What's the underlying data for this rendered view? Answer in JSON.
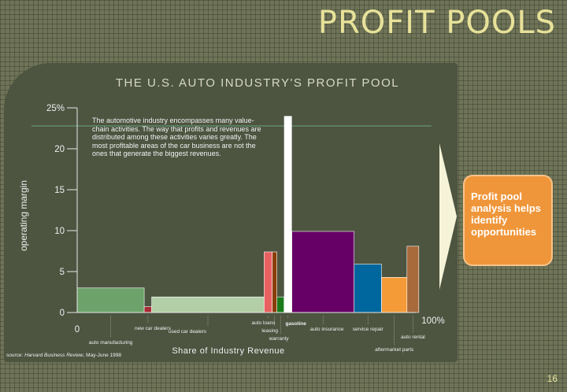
{
  "slide": {
    "title": "PROFIT POOLS",
    "callout": "Profit pool analysis helps identify opportunities",
    "page_number": "16"
  },
  "colors": {
    "background": "#6f7458",
    "panel": "#4d5440",
    "title": "#e8e29a",
    "callout": "#f0963a",
    "arrow": "#fffde0"
  },
  "chart_data": {
    "type": "bar",
    "variant": "variable-width (marimekko) profit pool",
    "title": "THE U.S. AUTO INDUSTRY'S PROFIT POOL",
    "xlabel": "Share of Industry Revenue",
    "ylabel": "operating margin",
    "x_range": [
      0,
      100
    ],
    "x_ticks": [
      "0",
      "100%"
    ],
    "ylim": [
      0,
      25
    ],
    "y_ticks": [
      "0",
      "5",
      "10",
      "15",
      "20",
      "25%"
    ],
    "annotation": "The automotive industry encompasses many value-chain activities.  The way that profits and revenues are distributed among these activities varies greatly.  The most profitable areas of the car business are not the ones that generate the biggest revenues.",
    "source_prefix": "source: ",
    "source_italic": "Harvard Business Review",
    "source_suffix": ", May-June 1998",
    "segments": [
      {
        "label": "auto manufacturing",
        "share": 19.8,
        "margin": 3.0,
        "color": "#6da36b"
      },
      {
        "label": "new car dealers",
        "share": 2.2,
        "margin": 0.7,
        "color": "#a82a34"
      },
      {
        "label": "used car dealers",
        "share": 33.2,
        "margin": 1.9,
        "color": "#b2cfa8"
      },
      {
        "label": "auto loans",
        "share": 2.4,
        "margin": 7.4,
        "color": "#e86060"
      },
      {
        "label": "leasing",
        "share": 1.4,
        "margin": 7.4,
        "color": "#8a3e0a"
      },
      {
        "label": "warranty",
        "share": 2.1,
        "margin": 1.9,
        "color": "#1a7a1a"
      },
      {
        "label": "auto insurance",
        "share": 18.4,
        "margin": 9.9,
        "color": "#660066"
      },
      {
        "label": "service repair",
        "share": 8.1,
        "margin": 5.9,
        "color": "#00679e"
      },
      {
        "label": "aftermarket parts",
        "share": 7.5,
        "margin": 4.3,
        "color": "#f49b38"
      },
      {
        "label": "auto rental",
        "share": 3.5,
        "margin": 8.1,
        "color": "#a86a3a"
      }
    ],
    "gasoline": {
      "label": "gasoline",
      "share": 2.3,
      "margin": 24.0,
      "color": "#ffffff"
    },
    "legend": "none",
    "grid": false
  }
}
